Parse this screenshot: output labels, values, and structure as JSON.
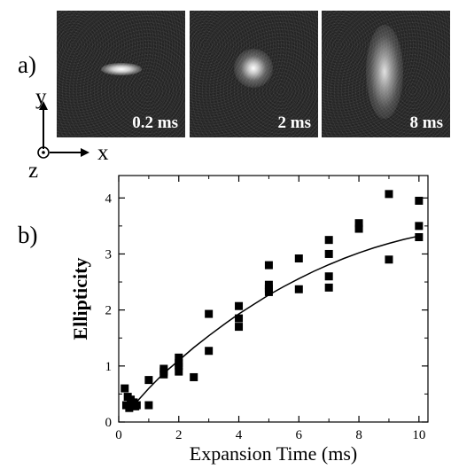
{
  "panel_a": {
    "label": "a)",
    "images": [
      {
        "time_label": "0.2 ms"
      },
      {
        "time_label": "2 ms"
      },
      {
        "time_label": "8 ms"
      }
    ],
    "axes": {
      "y": "y",
      "x": "x",
      "z": "z"
    }
  },
  "panel_b": {
    "label": "b)"
  },
  "chart_data": {
    "type": "scatter",
    "xlabel": "Expansion Time (ms)",
    "ylabel": "Ellipticity",
    "xlim": [
      0,
      10.3
    ],
    "ylim": [
      0,
      4.4
    ],
    "xticks": [
      0,
      2,
      4,
      6,
      8,
      10
    ],
    "yticks": [
      0,
      1,
      2,
      3,
      4
    ],
    "grid": false,
    "series": [
      {
        "marker": "square",
        "points": [
          [
            0.2,
            0.6
          ],
          [
            0.25,
            0.3
          ],
          [
            0.3,
            0.45
          ],
          [
            0.35,
            0.25
          ],
          [
            0.4,
            0.4
          ],
          [
            0.45,
            0.3
          ],
          [
            0.5,
            0.35
          ],
          [
            0.55,
            0.28
          ],
          [
            0.6,
            0.3
          ],
          [
            1.0,
            0.75
          ],
          [
            1.0,
            0.3
          ],
          [
            1.5,
            0.85
          ],
          [
            1.5,
            0.95
          ],
          [
            1.5,
            0.9
          ],
          [
            2.0,
            1.15
          ],
          [
            2.0,
            1.05
          ],
          [
            2.0,
            1.0
          ],
          [
            2.0,
            0.9
          ],
          [
            2.5,
            0.8
          ],
          [
            3.0,
            1.93
          ],
          [
            3.0,
            1.27
          ],
          [
            4.0,
            2.07
          ],
          [
            4.0,
            1.85
          ],
          [
            4.0,
            1.7
          ],
          [
            5.0,
            2.8
          ],
          [
            5.0,
            2.45
          ],
          [
            5.0,
            2.38
          ],
          [
            5.0,
            2.32
          ],
          [
            6.0,
            2.92
          ],
          [
            6.0,
            2.37
          ],
          [
            7.0,
            3.25
          ],
          [
            7.0,
            3.0
          ],
          [
            7.0,
            2.6
          ],
          [
            7.0,
            2.4
          ],
          [
            8.0,
            3.55
          ],
          [
            8.0,
            3.45
          ],
          [
            9.0,
            4.07
          ],
          [
            9.0,
            2.9
          ],
          [
            10.0,
            3.95
          ],
          [
            10.0,
            3.5
          ],
          [
            10.0,
            3.3
          ]
        ]
      },
      {
        "marker": "line",
        "points": [
          [
            0.5,
            0.3
          ],
          [
            1.0,
            0.6
          ],
          [
            1.5,
            0.87
          ],
          [
            2.0,
            1.1
          ],
          [
            2.5,
            1.33
          ],
          [
            3.0,
            1.54
          ],
          [
            3.5,
            1.74
          ],
          [
            4.0,
            1.93
          ],
          [
            4.5,
            2.1
          ],
          [
            5.0,
            2.27
          ],
          [
            5.5,
            2.42
          ],
          [
            6.0,
            2.56
          ],
          [
            6.5,
            2.69
          ],
          [
            7.0,
            2.81
          ],
          [
            7.5,
            2.92
          ],
          [
            8.0,
            3.02
          ],
          [
            8.5,
            3.11
          ],
          [
            9.0,
            3.19
          ],
          [
            9.5,
            3.26
          ],
          [
            10.0,
            3.32
          ]
        ]
      }
    ]
  }
}
